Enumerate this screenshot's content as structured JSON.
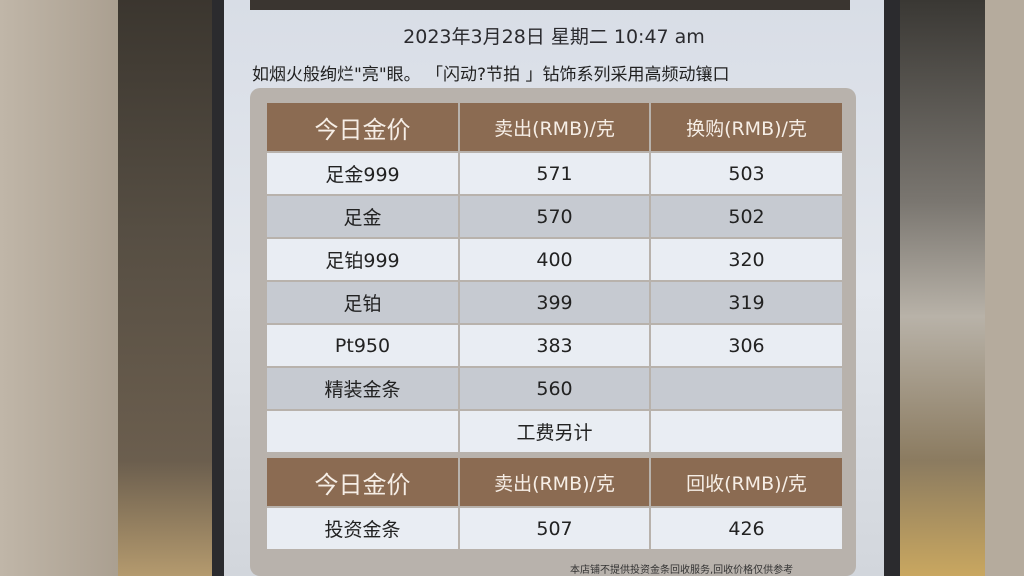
{
  "date_line": "2023年3月28日 星期二 10:47 am",
  "ticker": "如烟火般绚烂\"亮\"眼。 「闪动?节拍 」钻饰系列采用高频动镶口",
  "table1": {
    "headers": [
      "今日金价",
      "卖出(RMB)/克",
      "换购(RMB)/克"
    ],
    "rows": [
      [
        "足金999",
        "571",
        "503"
      ],
      [
        "足金",
        "570",
        "502"
      ],
      [
        "足铂999",
        "400",
        "320"
      ],
      [
        "足铂",
        "399",
        "319"
      ],
      [
        "Pt950",
        "383",
        "306"
      ],
      [
        "精装金条",
        "560",
        ""
      ],
      [
        "",
        "工费另计",
        ""
      ]
    ]
  },
  "table2": {
    "headers": [
      "今日金价",
      "卖出(RMB)/克",
      "回收(RMB)/克"
    ],
    "rows": [
      [
        "投资金条",
        "507",
        "426"
      ]
    ]
  },
  "note": "本店铺不提供投资金条回收服务,回收价格仅供参考",
  "colors": {
    "header": "#8b6b52",
    "cell_light": "#e9edf3",
    "cell_gray": "#c6cad1"
  }
}
